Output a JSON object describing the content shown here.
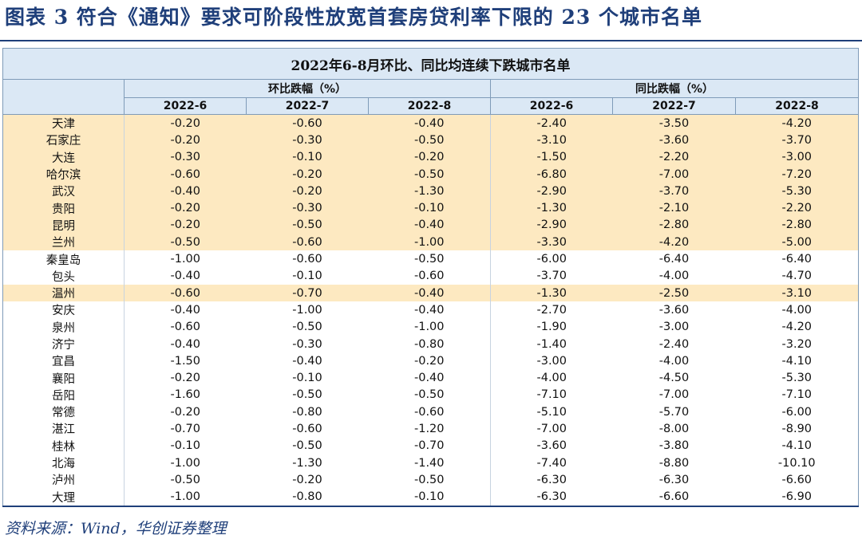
{
  "figure_title": "图表 3   符合《通知》要求可阶段性放宽首套房贷利率下限的 23 个城市名单",
  "table": {
    "main_header": "2022年6-8月环比、同比均连续下跌城市名单",
    "group_headers": [
      "环比跌幅（%）",
      "同比跌幅（%）"
    ],
    "column_headers": [
      "2022-6",
      "2022-7",
      "2022-8",
      "2022-6",
      "2022-7",
      "2022-8"
    ],
    "highlight_color": "#fde9c1",
    "header_color": "#dbe8f5",
    "rows": [
      {
        "city": "天津",
        "values": [
          "-0.20",
          "-0.60",
          "-0.40",
          "-2.40",
          "-3.50",
          "-4.20"
        ],
        "highlight": true
      },
      {
        "city": "石家庄",
        "values": [
          "-0.20",
          "-0.30",
          "-0.50",
          "-3.10",
          "-3.60",
          "-3.70"
        ],
        "highlight": true
      },
      {
        "city": "大连",
        "values": [
          "-0.30",
          "-0.10",
          "-0.20",
          "-1.50",
          "-2.20",
          "-3.00"
        ],
        "highlight": true
      },
      {
        "city": "哈尔滨",
        "values": [
          "-0.60",
          "-0.20",
          "-0.50",
          "-6.80",
          "-7.00",
          "-7.20"
        ],
        "highlight": true
      },
      {
        "city": "武汉",
        "values": [
          "-0.40",
          "-0.20",
          "-1.30",
          "-2.90",
          "-3.70",
          "-5.30"
        ],
        "highlight": true
      },
      {
        "city": "贵阳",
        "values": [
          "-0.20",
          "-0.30",
          "-0.10",
          "-1.30",
          "-2.10",
          "-2.20"
        ],
        "highlight": true
      },
      {
        "city": "昆明",
        "values": [
          "-0.20",
          "-0.50",
          "-0.40",
          "-2.90",
          "-2.80",
          "-2.80"
        ],
        "highlight": true
      },
      {
        "city": "兰州",
        "values": [
          "-0.50",
          "-0.60",
          "-1.00",
          "-3.30",
          "-4.20",
          "-5.00"
        ],
        "highlight": true
      },
      {
        "city": "秦皇岛",
        "values": [
          "-1.00",
          "-0.60",
          "-0.50",
          "-6.00",
          "-6.40",
          "-6.40"
        ],
        "highlight": false
      },
      {
        "city": "包头",
        "values": [
          "-0.40",
          "-0.10",
          "-0.60",
          "-3.70",
          "-4.00",
          "-4.70"
        ],
        "highlight": false
      },
      {
        "city": "温州",
        "values": [
          "-0.60",
          "-0.70",
          "-0.40",
          "-1.30",
          "-2.50",
          "-3.10"
        ],
        "highlight": true
      },
      {
        "city": "安庆",
        "values": [
          "-0.40",
          "-1.00",
          "-0.40",
          "-2.70",
          "-3.60",
          "-4.00"
        ],
        "highlight": false
      },
      {
        "city": "泉州",
        "values": [
          "-0.60",
          "-0.50",
          "-1.00",
          "-1.90",
          "-3.00",
          "-4.20"
        ],
        "highlight": false
      },
      {
        "city": "济宁",
        "values": [
          "-0.40",
          "-0.30",
          "-0.80",
          "-1.40",
          "-2.40",
          "-3.20"
        ],
        "highlight": false
      },
      {
        "city": "宜昌",
        "values": [
          "-1.50",
          "-0.40",
          "-0.20",
          "-3.00",
          "-4.00",
          "-4.10"
        ],
        "highlight": false
      },
      {
        "city": "襄阳",
        "values": [
          "-0.20",
          "-0.10",
          "-0.40",
          "-4.00",
          "-4.50",
          "-5.30"
        ],
        "highlight": false
      },
      {
        "city": "岳阳",
        "values": [
          "-1.60",
          "-0.50",
          "-0.50",
          "-7.10",
          "-7.00",
          "-7.10"
        ],
        "highlight": false
      },
      {
        "city": "常德",
        "values": [
          "-0.20",
          "-0.80",
          "-0.60",
          "-5.10",
          "-5.70",
          "-6.00"
        ],
        "highlight": false
      },
      {
        "city": "湛江",
        "values": [
          "-0.70",
          "-0.60",
          "-1.20",
          "-7.00",
          "-8.00",
          "-8.90"
        ],
        "highlight": false
      },
      {
        "city": "桂林",
        "values": [
          "-0.10",
          "-0.50",
          "-0.70",
          "-3.60",
          "-3.80",
          "-4.10"
        ],
        "highlight": false
      },
      {
        "city": "北海",
        "values": [
          "-1.00",
          "-1.30",
          "-1.40",
          "-7.40",
          "-8.80",
          "-10.10"
        ],
        "highlight": false
      },
      {
        "city": "泸州",
        "values": [
          "-0.50",
          "-0.20",
          "-0.50",
          "-6.30",
          "-6.30",
          "-6.60"
        ],
        "highlight": false
      },
      {
        "city": "大理",
        "values": [
          "-1.00",
          "-0.80",
          "-0.10",
          "-6.30",
          "-6.60",
          "-6.90"
        ],
        "highlight": false
      }
    ]
  },
  "source": "资料来源：Wind，华创证券整理"
}
